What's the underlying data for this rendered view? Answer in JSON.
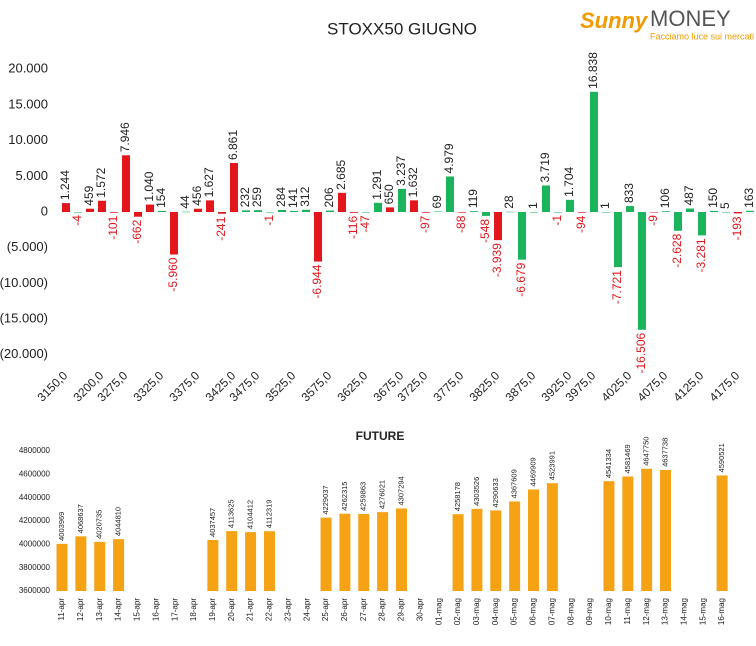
{
  "logo": {
    "brand1": "Sunny",
    "brand2": "MONEY",
    "tagline": "Facciamo luce sui mercati"
  },
  "chart_data": [
    {
      "type": "bar",
      "title": "STOXX50 GIUGNO",
      "categories": [
        "3150,0",
        null,
        null,
        "3200,0",
        null,
        "3275,0",
        null,
        null,
        "3325,0",
        null,
        null,
        "3375,0",
        null,
        null,
        "3425,0",
        null,
        "3475,0",
        null,
        null,
        "3525,0",
        null,
        null,
        "3575,0",
        null,
        null,
        "3625,0",
        null,
        null,
        "3675,0",
        null,
        "3725,0",
        null,
        null,
        "3775,0",
        null,
        null,
        "3825,0",
        null,
        null,
        "3875,0",
        null,
        null,
        "3925,0",
        null,
        "3975,0",
        null,
        null,
        "4025,0",
        null,
        null,
        "4075,0",
        null,
        null,
        "4125,0",
        null,
        null,
        "4175,0",
        null
      ],
      "values": [
        1244,
        -4,
        459,
        1572,
        -101,
        7946,
        -662,
        1040,
        154,
        -5960,
        44,
        456,
        1627,
        -241,
        6861,
        232,
        259,
        -1,
        284,
        141,
        312,
        -6944,
        206,
        2685,
        -116,
        -47,
        1291,
        650,
        3237,
        1632,
        -97,
        69,
        4979,
        -88,
        119,
        -548,
        -3939,
        28,
        -6679,
        1,
        3719,
        -1,
        1704,
        -94,
        16838,
        1,
        -7721,
        833,
        -16506,
        -9,
        106,
        -2628,
        487,
        -3281,
        150,
        5,
        -193,
        163
      ],
      "value_labels": [
        "1.244",
        "-4",
        "459",
        "1.572",
        "-101",
        "7.946",
        "-662",
        "1.040",
        "154",
        "-5.960",
        "44",
        "456",
        "1.627",
        "-241",
        "6.861",
        "232",
        "259",
        "-1",
        "284",
        "141",
        "312",
        "-6.944",
        "206",
        "2.685",
        "-116",
        "-47",
        "1.291",
        "650",
        "3.237",
        "1.632",
        "-97",
        "69",
        "4.979",
        "-88",
        "119",
        "-548",
        "-3.939",
        "28",
        "-6.679",
        "1",
        "3.719",
        "-1",
        "1.704",
        "-94",
        "16.838",
        "1",
        "-7.721",
        "833",
        "-16.506",
        "-9",
        "106",
        "-2.628",
        "487",
        "-3.281",
        "150",
        "5",
        "-193",
        "163"
      ],
      "colors": [
        "#e3161b",
        "#1bb35c",
        "#e3161b",
        "#e3161b",
        "#e3161b",
        "#e3161b",
        "#e3161b",
        "#e3161b",
        "#1bb35c",
        "#e3161b",
        "#1bb35c",
        "#e3161b",
        "#e3161b",
        "#e3161b",
        "#e3161b",
        "#1bb35c",
        "#1bb35c",
        "#1bb35c",
        "#1bb35c",
        "#1bb35c",
        "#1bb35c",
        "#e3161b",
        "#1bb35c",
        "#e3161b",
        "#e3161b",
        "#1bb35c",
        "#1bb35c",
        "#e3161b",
        "#1bb35c",
        "#e3161b",
        "#e3161b",
        "#1bb35c",
        "#1bb35c",
        "#e3161b",
        "#1bb35c",
        "#1bb35c",
        "#e3161b",
        "#1bb35c",
        "#1bb35c",
        "#1bb35c",
        "#1bb35c",
        "#1bb35c",
        "#1bb35c",
        "#e3161b",
        "#1bb35c",
        "#1bb35c",
        "#1bb35c",
        "#1bb35c",
        "#1bb35c",
        "#e3161b",
        "#1bb35c",
        "#1bb35c",
        "#1bb35c",
        "#1bb35c",
        "#1bb35c",
        "#1bb35c",
        "#e3161b",
        "#1bb35c"
      ],
      "ylim": [
        -22000,
        22000
      ],
      "yticks": [
        {
          "value": 20000,
          "label": "20.000"
        },
        {
          "value": 15000,
          "label": "15.000"
        },
        {
          "value": 10000,
          "label": "10.000"
        },
        {
          "value": 5000,
          "label": "5.000"
        },
        0,
        {
          "value": -5000,
          "label": "(5.000)"
        },
        {
          "value": -10000,
          "label": "(10.000)"
        },
        {
          "value": -15000,
          "label": "(15.000)"
        },
        {
          "value": -20000,
          "label": "(20.000)"
        }
      ]
    },
    {
      "type": "bar",
      "title": "FUTURE",
      "categories": [
        "11-apr",
        "12-apr",
        "13-apr",
        "14-apr",
        "15-apr",
        "16-apr",
        "17-apr",
        "18-apr",
        "19-apr",
        "20-apr",
        "21-apr",
        "22-apr",
        "23-apr",
        "24-apr",
        "25-apr",
        "26-apr",
        "27-apr",
        "28-apr",
        "29-apr",
        "30-apr",
        "01-mag",
        "02-mag",
        "03-mag",
        "04-mag",
        "05-mag",
        "06-mag",
        "07-mag",
        "08-mag",
        "09-mag",
        "10-mag",
        "11-mag",
        "12-mag",
        "13-mag",
        "14-mag",
        "15-mag",
        "16-mag"
      ],
      "values": [
        4003969,
        4068637,
        4020735,
        4044810,
        null,
        null,
        null,
        null,
        4037457,
        4113625,
        4104412,
        4112319,
        null,
        null,
        4229037,
        4262315,
        4259863,
        4276021,
        4307294,
        null,
        null,
        4258178,
        4303526,
        4290633,
        4367609,
        4469909,
        4523991,
        null,
        null,
        4541334,
        4581469,
        4647750,
        4637738,
        null,
        null,
        4590521
      ],
      "color": "#f5a314",
      "ylim": [
        3600000,
        4800000
      ],
      "yticks": [
        3600000,
        3800000,
        4000000,
        4200000,
        4400000,
        4600000,
        4800000
      ]
    }
  ]
}
